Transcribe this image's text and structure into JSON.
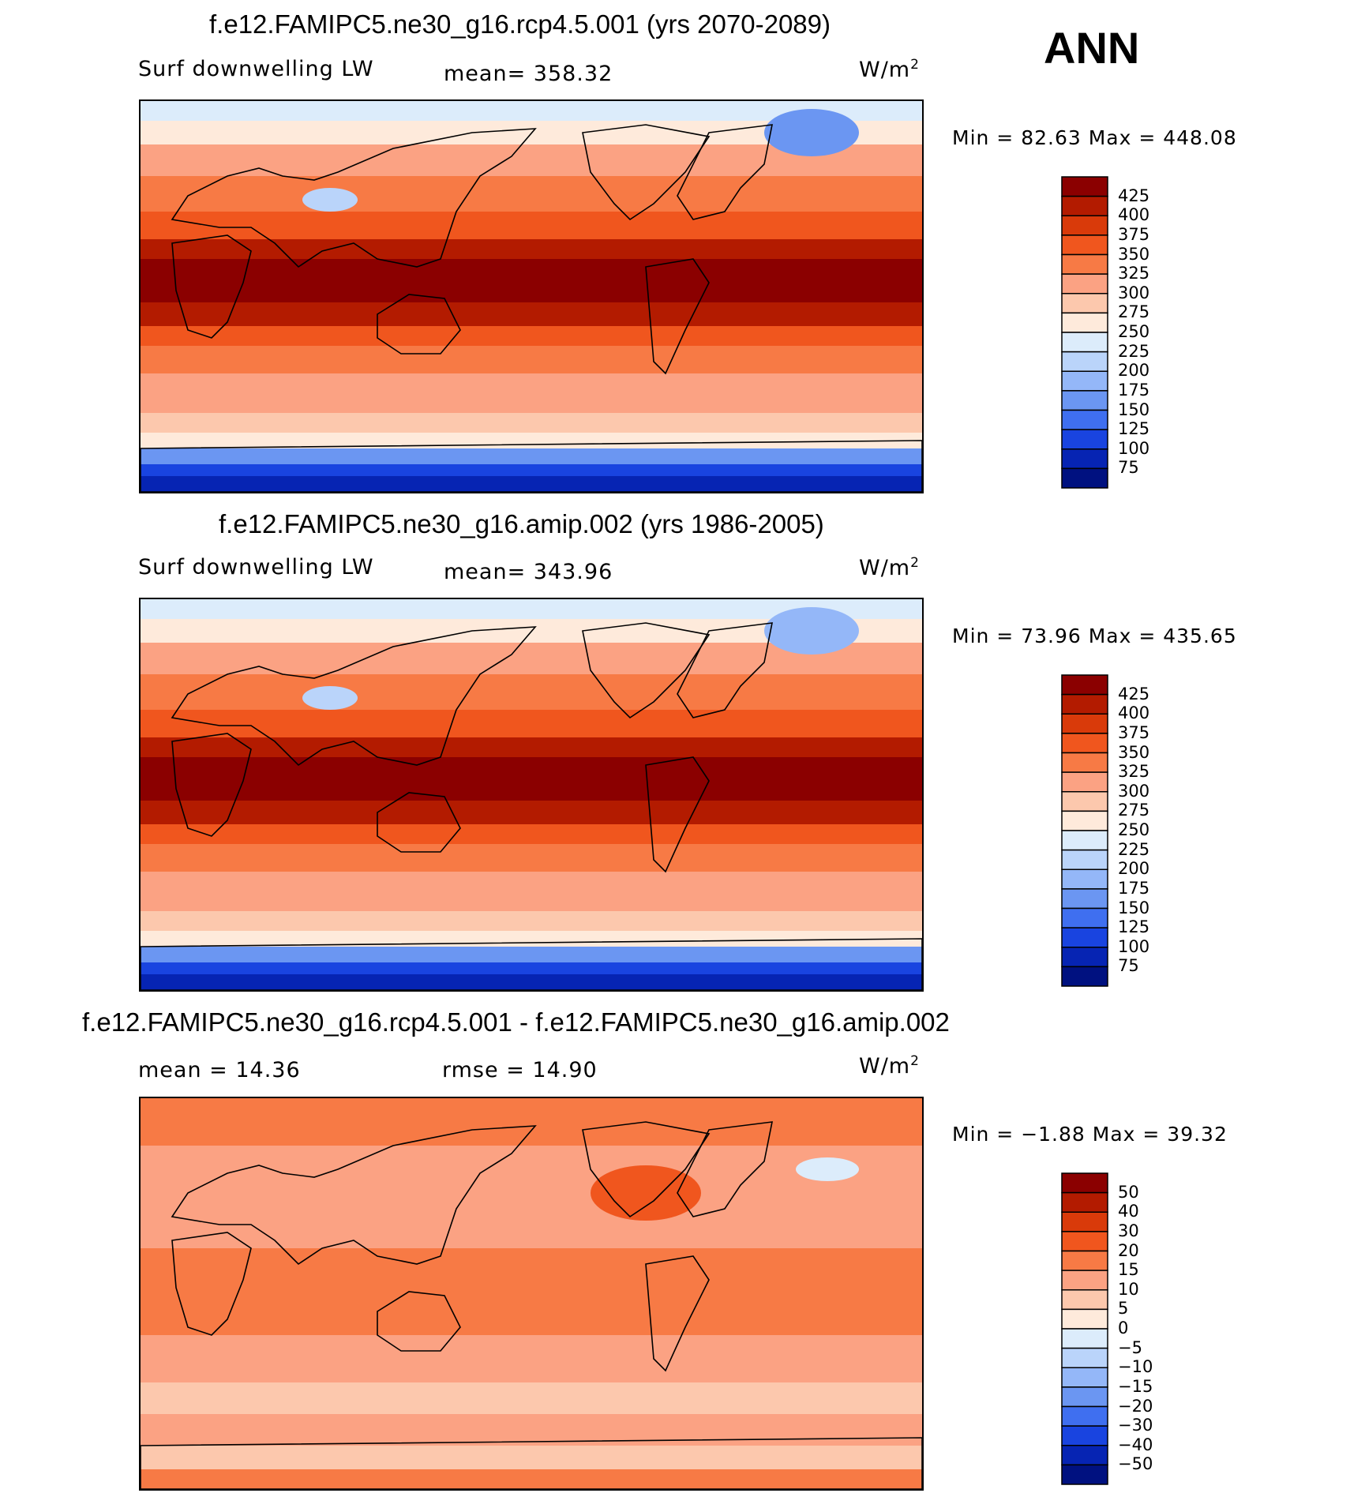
{
  "season": "ANN",
  "panels": [
    {
      "title": "f.e12.FAMIPC5.ne30_g16.rcp4.5.001 (yrs 2070-2089)",
      "left_label": "Surf downwelling LW",
      "center_label": "mean= 358.32",
      "units": "W/m",
      "units_sup": "2",
      "minmax": "Min =   82.63 Max = 448.08",
      "colorbar_ticks": [
        "425",
        "400",
        "375",
        "350",
        "325",
        "300",
        "275",
        "250",
        "225",
        "200",
        "175",
        "150",
        "125",
        "100",
        "75"
      ],
      "colors": [
        "#8b0000",
        "#b31b00",
        "#d93a0a",
        "#f0561e",
        "#f77a45",
        "#fba283",
        "#fcc8ad",
        "#feeadb",
        "#dcecfb",
        "#bad4fa",
        "#94b7f8",
        "#6b96f2",
        "#3f6ff0",
        "#1944e0",
        "#0624b3",
        "#001180"
      ]
    },
    {
      "title": "f.e12.FAMIPC5.ne30_g16.amip.002 (yrs 1986-2005)",
      "left_label": "Surf downwelling LW",
      "center_label": "mean= 343.96",
      "units": "W/m",
      "units_sup": "2",
      "minmax": "Min =   73.96 Max = 435.65",
      "colorbar_ticks": [
        "425",
        "400",
        "375",
        "350",
        "325",
        "300",
        "275",
        "250",
        "225",
        "200",
        "175",
        "150",
        "125",
        "100",
        "75"
      ],
      "colors": [
        "#8b0000",
        "#b31b00",
        "#d93a0a",
        "#f0561e",
        "#f77a45",
        "#fba283",
        "#fcc8ad",
        "#feeadb",
        "#dcecfb",
        "#bad4fa",
        "#94b7f8",
        "#6b96f2",
        "#3f6ff0",
        "#1944e0",
        "#0624b3",
        "#001180"
      ]
    },
    {
      "title": "f.e12.FAMIPC5.ne30_g16.rcp4.5.001 - f.e12.FAMIPC5.ne30_g16.amip.002",
      "left_label": "mean =   14.36",
      "center_label": "rmse =   14.90",
      "units": "W/m",
      "units_sup": "2",
      "minmax": "Min =  −1.88 Max =   39.32",
      "colorbar_ticks": [
        "50",
        "40",
        "30",
        "20",
        "15",
        "10",
        "5",
        "0",
        "−5",
        "−10",
        "−15",
        "−20",
        "−30",
        "−40",
        "−50"
      ],
      "colors": [
        "#8b0000",
        "#b31b00",
        "#d93a0a",
        "#f0561e",
        "#f77a45",
        "#fba283",
        "#fcc8ad",
        "#feeadb",
        "#dcecfb",
        "#bad4fa",
        "#94b7f8",
        "#6b96f2",
        "#3f6ff0",
        "#1944e0",
        "#0624b3",
        "#001180"
      ]
    }
  ]
}
